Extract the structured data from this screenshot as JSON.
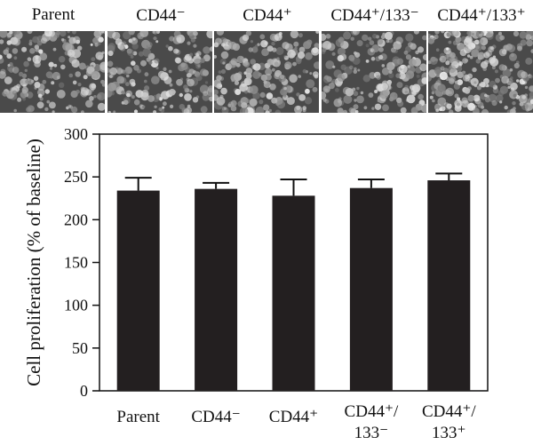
{
  "micrograph_panels": [
    {
      "label": "Parent"
    },
    {
      "label": "CD44⁻"
    },
    {
      "label": "CD44⁺"
    },
    {
      "label": "CD44⁺/133⁻"
    },
    {
      "label": "CD44⁺/133⁺"
    }
  ],
  "chart_data": {
    "type": "bar",
    "title": "",
    "xlabel": "",
    "ylabel": "Cell proliferation (% of baseline)",
    "ylim": [
      0,
      300
    ],
    "yticks": [
      0,
      50,
      100,
      150,
      200,
      250,
      300
    ],
    "grid": false,
    "categories": [
      {
        "line1": "Parent",
        "line2": ""
      },
      {
        "line1": "CD44⁻",
        "line2": ""
      },
      {
        "line1": "CD44⁺",
        "line2": ""
      },
      {
        "line1": "CD44⁺/",
        "line2": "133⁻"
      },
      {
        "line1": "CD44⁺/",
        "line2": "133⁺"
      }
    ],
    "values": [
      234,
      236,
      228,
      237,
      246
    ],
    "error_upper": [
      15,
      7,
      19,
      10,
      8
    ],
    "bar_color": "#231f20"
  }
}
